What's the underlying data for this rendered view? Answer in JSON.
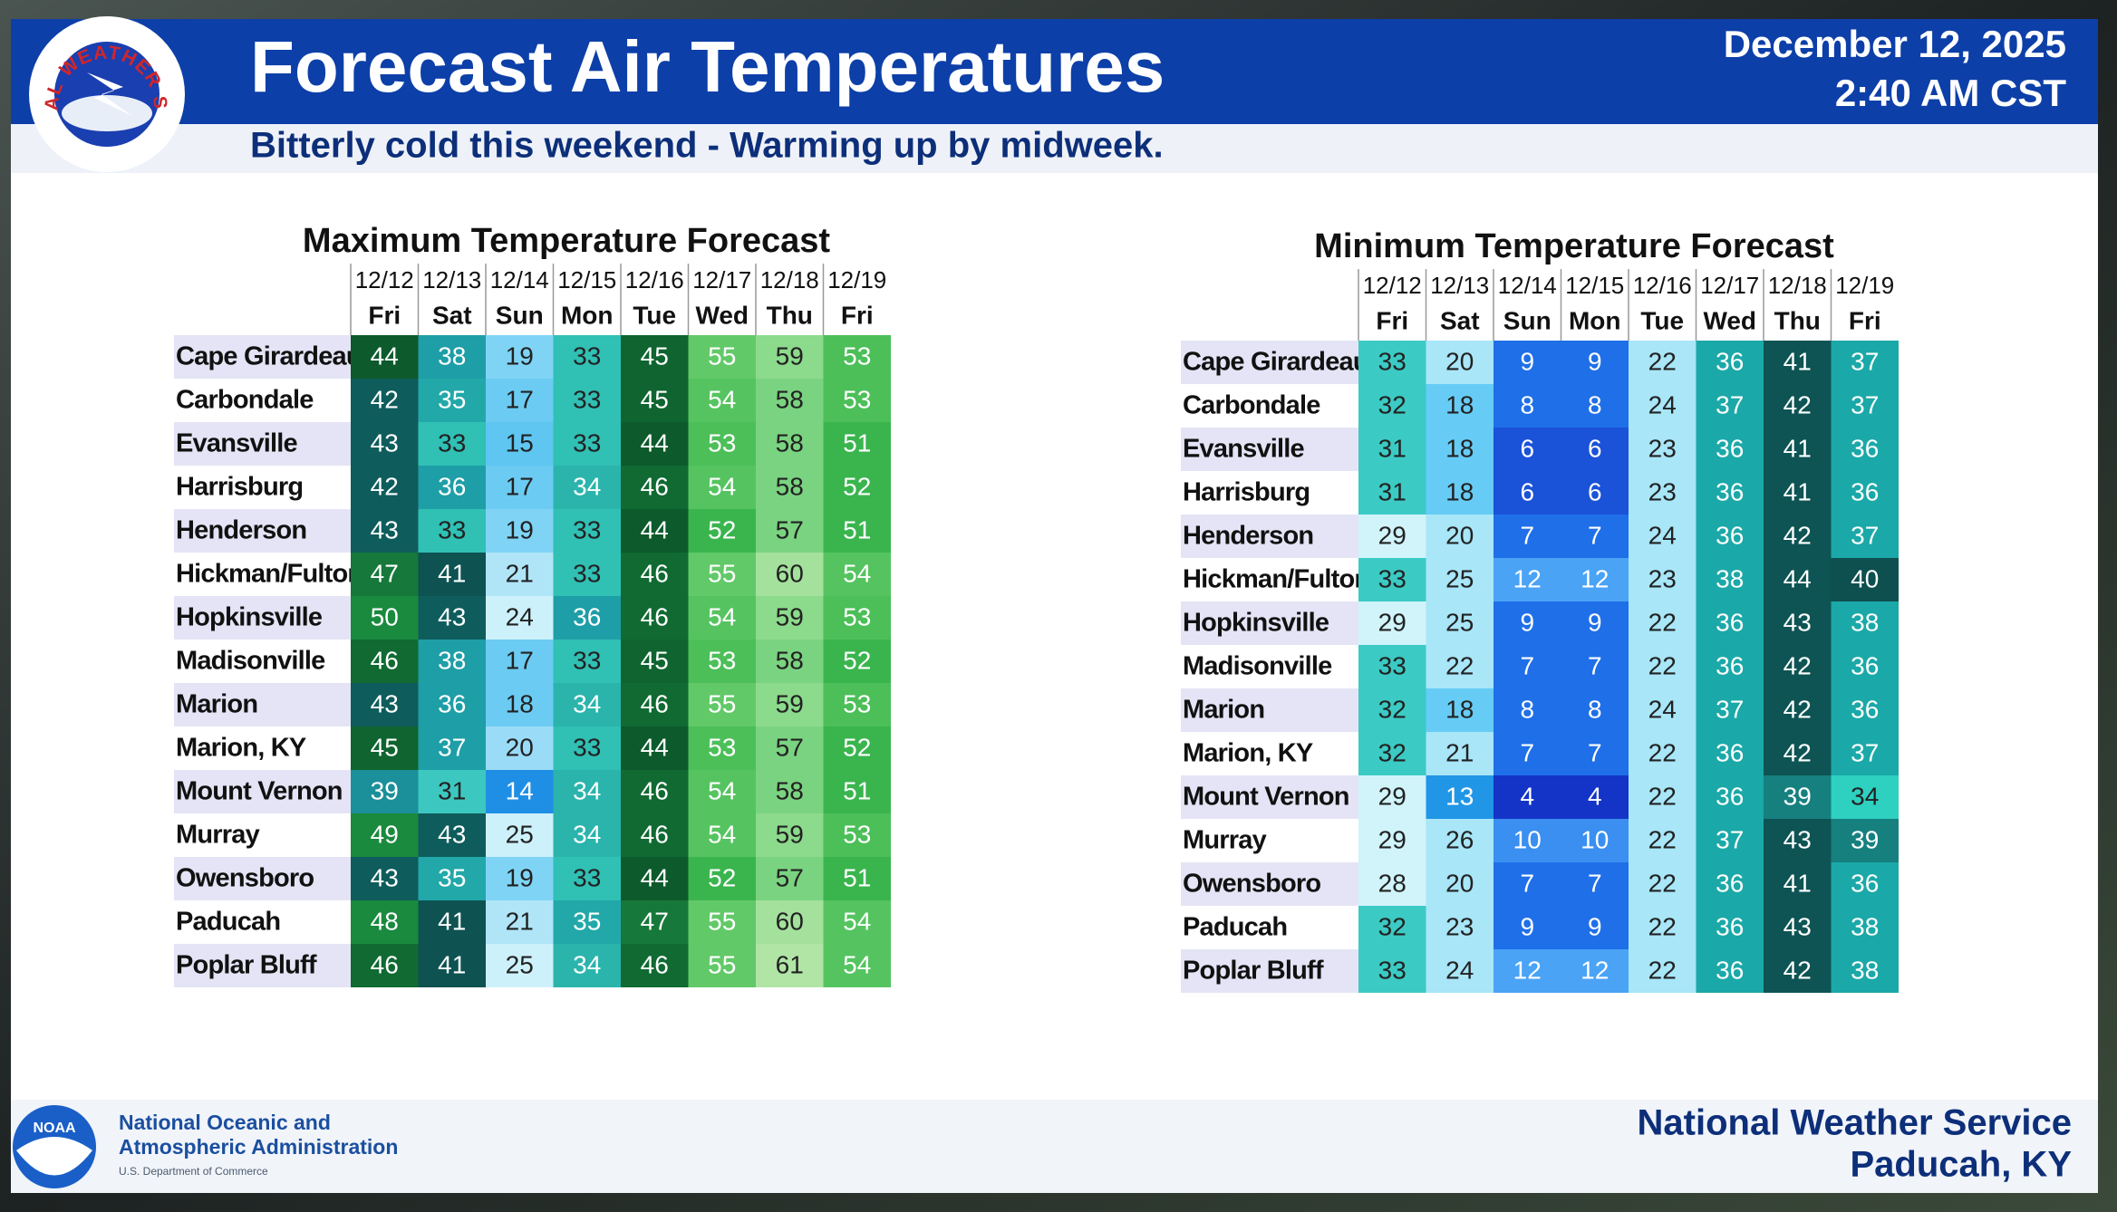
{
  "header": {
    "logo_text": "NATIONAL WEATHER SERVICE",
    "title": "Forecast Air Temperatures",
    "subtitle": "Bitterly cold this weekend - Warming up by midweek.",
    "date": "December 12, 2025",
    "time": "2:40 AM CST"
  },
  "tables": [
    {
      "title": "Maximum Temperature Forecast",
      "dates": [
        "12/12",
        "12/13",
        "12/14",
        "12/15",
        "12/16",
        "12/17",
        "12/18",
        "12/19"
      ],
      "days": [
        "Fri",
        "Sat",
        "Sun",
        "Mon",
        "Tue",
        "Wed",
        "Thu",
        "Fri"
      ],
      "rows": [
        {
          "name": "Cape Girardeau",
          "values": [
            44,
            38,
            19,
            33,
            45,
            55,
            59,
            53
          ]
        },
        {
          "name": "Carbondale",
          "values": [
            42,
            35,
            17,
            33,
            45,
            54,
            58,
            53
          ]
        },
        {
          "name": "Evansville",
          "values": [
            43,
            33,
            15,
            33,
            44,
            53,
            58,
            51
          ]
        },
        {
          "name": "Harrisburg",
          "values": [
            42,
            36,
            17,
            34,
            46,
            54,
            58,
            52
          ]
        },
        {
          "name": "Henderson",
          "values": [
            43,
            33,
            19,
            33,
            44,
            52,
            57,
            51
          ]
        },
        {
          "name": "Hickman/Fulton",
          "values": [
            47,
            41,
            21,
            33,
            46,
            55,
            60,
            54
          ]
        },
        {
          "name": "Hopkinsville",
          "values": [
            50,
            43,
            24,
            36,
            46,
            54,
            59,
            53
          ]
        },
        {
          "name": "Madisonville",
          "values": [
            46,
            38,
            17,
            33,
            45,
            53,
            58,
            52
          ]
        },
        {
          "name": "Marion",
          "values": [
            43,
            36,
            18,
            34,
            46,
            55,
            59,
            53
          ]
        },
        {
          "name": "Marion, KY",
          "values": [
            45,
            37,
            20,
            33,
            44,
            53,
            57,
            52
          ]
        },
        {
          "name": "Mount Vernon",
          "values": [
            39,
            31,
            14,
            34,
            46,
            54,
            58,
            51
          ]
        },
        {
          "name": "Murray",
          "values": [
            49,
            43,
            25,
            34,
            46,
            54,
            59,
            53
          ]
        },
        {
          "name": "Owensboro",
          "values": [
            43,
            35,
            19,
            33,
            44,
            52,
            57,
            51
          ]
        },
        {
          "name": "Paducah",
          "values": [
            48,
            41,
            21,
            35,
            47,
            55,
            60,
            54
          ]
        },
        {
          "name": "Poplar Bluff",
          "values": [
            46,
            41,
            25,
            34,
            46,
            55,
            61,
            54
          ]
        }
      ]
    },
    {
      "title": "Minimum Temperature Forecast",
      "dates": [
        "12/12",
        "12/13",
        "12/14",
        "12/15",
        "12/16",
        "12/17",
        "12/18",
        "12/19"
      ],
      "days": [
        "Fri",
        "Sat",
        "Sun",
        "Mon",
        "Tue",
        "Wed",
        "Thu",
        "Fri"
      ],
      "rows": [
        {
          "name": "Cape Girardeau",
          "values": [
            33,
            20,
            9,
            9,
            22,
            36,
            41,
            37
          ]
        },
        {
          "name": "Carbondale",
          "values": [
            32,
            18,
            8,
            8,
            24,
            37,
            42,
            37
          ]
        },
        {
          "name": "Evansville",
          "values": [
            31,
            18,
            6,
            6,
            23,
            36,
            41,
            36
          ]
        },
        {
          "name": "Harrisburg",
          "values": [
            31,
            18,
            6,
            6,
            23,
            36,
            41,
            36
          ]
        },
        {
          "name": "Henderson",
          "values": [
            29,
            20,
            7,
            7,
            24,
            36,
            42,
            37
          ]
        },
        {
          "name": "Hickman/Fulton",
          "values": [
            33,
            25,
            12,
            12,
            23,
            38,
            44,
            40
          ]
        },
        {
          "name": "Hopkinsville",
          "values": [
            29,
            25,
            9,
            9,
            22,
            36,
            43,
            38
          ]
        },
        {
          "name": "Madisonville",
          "values": [
            33,
            22,
            7,
            7,
            22,
            36,
            42,
            36
          ]
        },
        {
          "name": "Marion",
          "values": [
            32,
            18,
            8,
            8,
            24,
            37,
            42,
            36
          ]
        },
        {
          "name": "Marion, KY",
          "values": [
            32,
            21,
            7,
            7,
            22,
            36,
            42,
            37
          ]
        },
        {
          "name": "Mount Vernon",
          "values": [
            29,
            13,
            4,
            4,
            22,
            36,
            39,
            34
          ]
        },
        {
          "name": "Murray",
          "values": [
            29,
            26,
            10,
            10,
            22,
            37,
            43,
            39
          ]
        },
        {
          "name": "Owensboro",
          "values": [
            28,
            20,
            7,
            7,
            22,
            36,
            41,
            36
          ]
        },
        {
          "name": "Paducah",
          "values": [
            32,
            23,
            9,
            9,
            22,
            36,
            43,
            38
          ]
        },
        {
          "name": "Poplar Bluff",
          "values": [
            33,
            24,
            12,
            12,
            22,
            36,
            42,
            38
          ]
        }
      ]
    }
  ],
  "footer": {
    "noaa_abbr": "NOAA",
    "noaa_line1": "National Oceanic and",
    "noaa_line2": "Atmospheric Administration",
    "noaa_line3": "U.S. Department of Commerce",
    "office_line1": "National Weather Service",
    "office_line2": "Paducah, KY"
  }
}
